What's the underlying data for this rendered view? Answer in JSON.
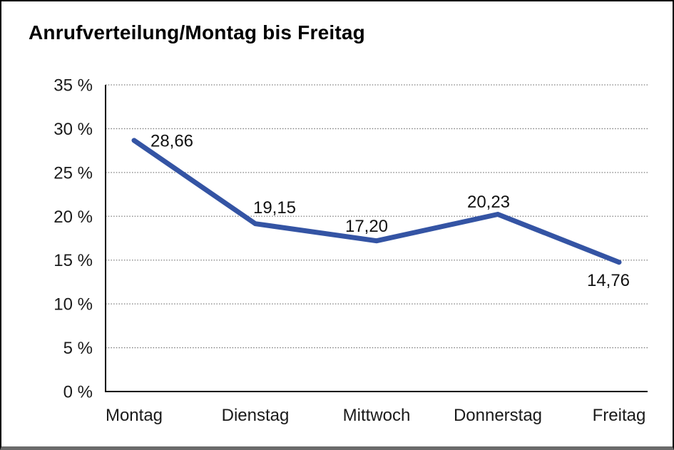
{
  "title": "Anrufverteilung/Montag bis Freitag",
  "colors": {
    "line": "#3454A4",
    "axis": "#000000",
    "grid": "#7d7d7d",
    "text": "#1a1a1a",
    "frame_border": "#000000",
    "frame_bottom_bar": "#6b6b6b",
    "background": "#ffffff"
  },
  "chart_data": {
    "type": "line",
    "title": "Anrufverteilung/Montag bis Freitag",
    "categories": [
      "Montag",
      "Dienstag",
      "Mittwoch",
      "Donnerstag",
      "Freitag"
    ],
    "values": [
      28.66,
      19.15,
      17.2,
      20.23,
      14.76
    ],
    "value_labels": [
      "28,66",
      "19,15",
      "17,20",
      "20,23",
      "14,76"
    ],
    "xlabel": "",
    "ylabel": "",
    "ylim": [
      0,
      35
    ],
    "ytick_step": 5,
    "ytick_labels": [
      "0 %",
      "5 %",
      "10 %",
      "15 %",
      "20 %",
      "25 %",
      "30 %",
      "35 %"
    ],
    "grid": "horizontal-dotted",
    "legend_position": "none",
    "series_name": "Anrufverteilung",
    "unit": "%"
  }
}
